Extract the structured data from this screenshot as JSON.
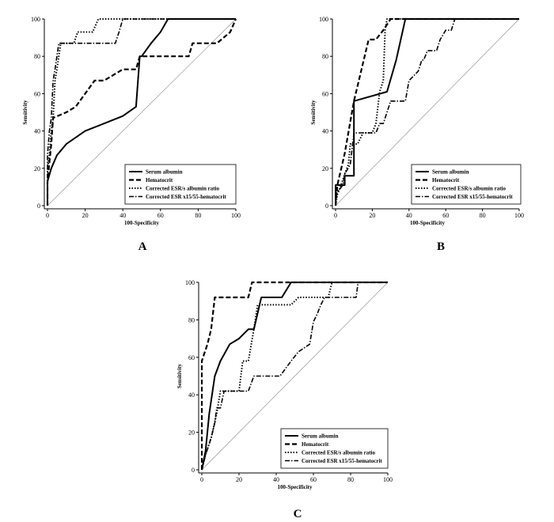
{
  "chart_data": [
    {
      "type": "line",
      "panel_label": "A",
      "xlabel": "100-Specificity",
      "ylabel": "Sensitivity",
      "xlim": [
        0,
        100
      ],
      "ylim": [
        0,
        100
      ],
      "xticks": [
        "0",
        "20",
        "40",
        "60",
        "80",
        "100"
      ],
      "yticks": [
        "0",
        "20",
        "40",
        "60",
        "80",
        "100"
      ],
      "legend_position": "bottom-right",
      "series": [
        {
          "name": "Serum albumin",
          "style": "solid",
          "points": [
            [
              0,
              0
            ],
            [
              0,
              13
            ],
            [
              2,
              20
            ],
            [
              5,
              27
            ],
            [
              10,
              33
            ],
            [
              20,
              40
            ],
            [
              30,
              44
            ],
            [
              40,
              48
            ],
            [
              47,
              53
            ],
            [
              49,
              80
            ],
            [
              50,
              80
            ],
            [
              55,
              87
            ],
            [
              60,
              93
            ],
            [
              64,
              100
            ],
            [
              100,
              100
            ]
          ]
        },
        {
          "name": "Hematocrit",
          "style": "dashed",
          "points": [
            [
              0,
              0
            ],
            [
              0,
              13
            ],
            [
              2,
              33
            ],
            [
              3,
              47
            ],
            [
              10,
              50
            ],
            [
              15,
              53
            ],
            [
              20,
              60
            ],
            [
              25,
              67
            ],
            [
              30,
              67
            ],
            [
              40,
              73
            ],
            [
              47,
              73
            ],
            [
              49,
              80
            ],
            [
              75,
              80
            ],
            [
              77,
              87
            ],
            [
              90,
              87
            ],
            [
              97,
              93
            ],
            [
              100,
              100
            ]
          ]
        },
        {
          "name": "Corrected ESR/s albumin ratio",
          "style": "dotted",
          "points": [
            [
              0,
              0
            ],
            [
              0,
              20
            ],
            [
              1,
              27
            ],
            [
              2,
              40
            ],
            [
              3,
              47
            ],
            [
              4,
              67
            ],
            [
              5,
              73
            ],
            [
              6,
              80
            ],
            [
              7,
              87
            ],
            [
              14,
              87
            ],
            [
              16,
              93
            ],
            [
              24,
              93
            ],
            [
              27,
              100
            ],
            [
              100,
              100
            ]
          ]
        },
        {
          "name": "Corrected ESR x15/55-hematocrit",
          "style": "dashdot",
          "points": [
            [
              0,
              0
            ],
            [
              0,
              27
            ],
            [
              1,
              40
            ],
            [
              2,
              47
            ],
            [
              3,
              67
            ],
            [
              4,
              73
            ],
            [
              5,
              80
            ],
            [
              6,
              87
            ],
            [
              10,
              87
            ],
            [
              30,
              87
            ],
            [
              36,
              87
            ],
            [
              38,
              93
            ],
            [
              40,
              100
            ],
            [
              100,
              100
            ]
          ]
        }
      ]
    },
    {
      "type": "line",
      "panel_label": "B",
      "xlabel": "100-Specificity",
      "ylabel": "Sensitivity",
      "xlim": [
        0,
        100
      ],
      "ylim": [
        0,
        100
      ],
      "xticks": [
        "0",
        "20",
        "40",
        "60",
        "80",
        "100"
      ],
      "yticks": [
        "0",
        "20",
        "40",
        "60",
        "80",
        "100"
      ],
      "legend_position": "bottom-right",
      "series": [
        {
          "name": "Serum albumin",
          "style": "solid",
          "points": [
            [
              0,
              0
            ],
            [
              0,
              11
            ],
            [
              5,
              11
            ],
            [
              5,
              16
            ],
            [
              10,
              16
            ],
            [
              10,
              56
            ],
            [
              28,
              61
            ],
            [
              33,
              78
            ],
            [
              38,
              100
            ],
            [
              100,
              100
            ]
          ]
        },
        {
          "name": "Hematocrit",
          "style": "dashed",
          "points": [
            [
              0,
              0
            ],
            [
              1,
              11
            ],
            [
              5,
              28
            ],
            [
              10,
              56
            ],
            [
              18,
              89
            ],
            [
              22,
              89
            ],
            [
              26,
              94
            ],
            [
              30,
              100
            ],
            [
              100,
              100
            ]
          ]
        },
        {
          "name": "Corrected ESR/s albumin ratio",
          "style": "dotted",
          "points": [
            [
              0,
              0
            ],
            [
              1,
              6
            ],
            [
              3,
              11
            ],
            [
              5,
              17
            ],
            [
              7,
              22
            ],
            [
              8,
              33
            ],
            [
              12,
              33
            ],
            [
              15,
              39
            ],
            [
              20,
              39
            ],
            [
              22,
              44
            ],
            [
              24,
              61
            ],
            [
              26,
              67
            ],
            [
              27,
              94
            ],
            [
              28,
              100
            ],
            [
              100,
              100
            ]
          ]
        },
        {
          "name": "Corrected ESR x15/55-hematocrit",
          "style": "dashdot",
          "points": [
            [
              0,
              0
            ],
            [
              0,
              6
            ],
            [
              4,
              11
            ],
            [
              5,
              17
            ],
            [
              8,
              22
            ],
            [
              10,
              39
            ],
            [
              15,
              39
            ],
            [
              20,
              39
            ],
            [
              22,
              39
            ],
            [
              24,
              44
            ],
            [
              26,
              44
            ],
            [
              28,
              50
            ],
            [
              30,
              56
            ],
            [
              35,
              56
            ],
            [
              38,
              56
            ],
            [
              40,
              67
            ],
            [
              45,
              72
            ],
            [
              47,
              78
            ],
            [
              48,
              78
            ],
            [
              50,
              83
            ],
            [
              55,
              83
            ],
            [
              57,
              89
            ],
            [
              60,
              94
            ],
            [
              63,
              94
            ],
            [
              65,
              100
            ],
            [
              100,
              100
            ]
          ]
        }
      ]
    },
    {
      "type": "line",
      "panel_label": "C",
      "xlabel": "100-Specificity",
      "ylabel": "Sensitivity",
      "xlim": [
        0,
        100
      ],
      "ylim": [
        0,
        100
      ],
      "xticks": [
        "0",
        "20",
        "40",
        "60",
        "80",
        "100"
      ],
      "yticks": [
        "0",
        "20",
        "40",
        "60",
        "80",
        "100"
      ],
      "legend_position": "bottom-right",
      "series": [
        {
          "name": "Serum albumin",
          "style": "solid",
          "points": [
            [
              0,
              0
            ],
            [
              2,
              10
            ],
            [
              4,
              30
            ],
            [
              7,
              50
            ],
            [
              10,
              58
            ],
            [
              15,
              67
            ],
            [
              20,
              70
            ],
            [
              25,
              75
            ],
            [
              28,
              75
            ],
            [
              32,
              92
            ],
            [
              40,
              92
            ],
            [
              43,
              92
            ],
            [
              48,
              100
            ],
            [
              100,
              100
            ]
          ]
        },
        {
          "name": "Hematocrit",
          "style": "dashed",
          "points": [
            [
              0,
              0
            ],
            [
              0,
              58
            ],
            [
              3,
              67
            ],
            [
              5,
              75
            ],
            [
              7,
              92
            ],
            [
              20,
              92
            ],
            [
              25,
              92
            ],
            [
              27,
              100
            ],
            [
              100,
              100
            ]
          ]
        },
        {
          "name": "Corrected ESR/s albumin ratio",
          "style": "dotted",
          "points": [
            [
              0,
              0
            ],
            [
              2,
              8
            ],
            [
              5,
              17
            ],
            [
              8,
              30
            ],
            [
              10,
              42
            ],
            [
              15,
              42
            ],
            [
              20,
              42
            ],
            [
              22,
              58
            ],
            [
              25,
              58
            ],
            [
              28,
              75
            ],
            [
              30,
              88
            ],
            [
              35,
              88
            ],
            [
              40,
              88
            ],
            [
              48,
              88
            ],
            [
              52,
              92
            ],
            [
              60,
              92
            ],
            [
              68,
              92
            ],
            [
              70,
              100
            ],
            [
              80,
              100
            ],
            [
              100,
              100
            ]
          ]
        },
        {
          "name": "Corrected ESR x15/55-hematocrit",
          "style": "dashdot",
          "points": [
            [
              0,
              0
            ],
            [
              2,
              8
            ],
            [
              5,
              17
            ],
            [
              7,
              25
            ],
            [
              8,
              33
            ],
            [
              10,
              33
            ],
            [
              12,
              42
            ],
            [
              20,
              42
            ],
            [
              25,
              42
            ],
            [
              28,
              50
            ],
            [
              32,
              50
            ],
            [
              38,
              50
            ],
            [
              42,
              50
            ],
            [
              48,
              58
            ],
            [
              52,
              63
            ],
            [
              58,
              67
            ],
            [
              60,
              79
            ],
            [
              62,
              83
            ],
            [
              64,
              88
            ],
            [
              66,
              92
            ],
            [
              72,
              92
            ],
            [
              76,
              92
            ],
            [
              83,
              92
            ],
            [
              84,
              100
            ],
            [
              100,
              100
            ]
          ]
        }
      ]
    }
  ]
}
